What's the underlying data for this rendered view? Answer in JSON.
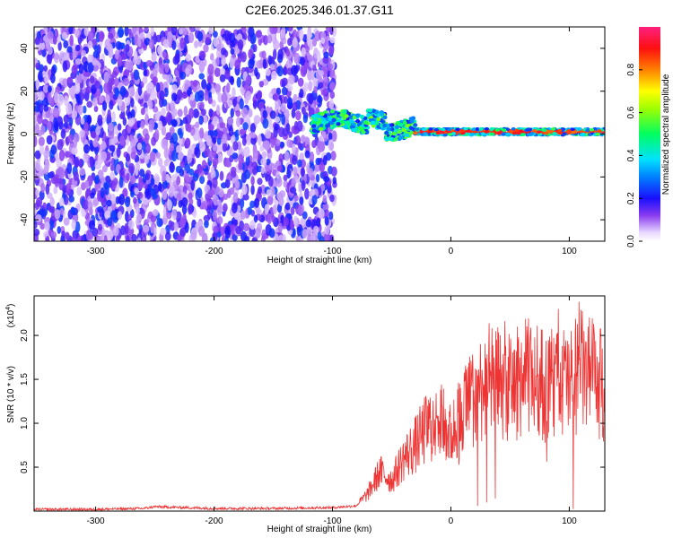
{
  "title": "C2E6.2025.346.01.37.G11",
  "chart_data": [
    {
      "type": "heatmap",
      "title": "C2E6.2025.346.01.37.G11",
      "xlabel": "Height of straight line (km)",
      "ylabel": "Frequency (Hz)",
      "xlim": [
        -352,
        130
      ],
      "ylim": [
        -50,
        50
      ],
      "x_ticks": [
        -300,
        -200,
        -100,
        0,
        100
      ],
      "y_ticks": [
        -40,
        -20,
        0,
        20,
        40
      ],
      "colorbar": {
        "label": "Normalized spectral amplitude",
        "range": [
          0.0,
          1.0
        ],
        "ticks": [
          0.0,
          0.2,
          0.4,
          0.6,
          0.8
        ]
      },
      "regions": [
        {
          "name": "broadband noise",
          "x_range": [
            -352,
            -98
          ],
          "freq_range": [
            -50,
            50
          ],
          "amplitude": [
            0.05,
            0.25
          ]
        },
        {
          "name": "signal onset",
          "x_range": [
            -118,
            -30
          ],
          "freq_center": 4,
          "freq_spread": 8,
          "amplitude": [
            0.2,
            0.6
          ]
        },
        {
          "name": "narrow carrier",
          "x_range": [
            -30,
            130
          ],
          "freq_center": 1,
          "freq_spread": 3,
          "amplitude": [
            0.4,
            1.0
          ]
        }
      ]
    },
    {
      "type": "line",
      "xlabel": "Height of straight line (km)",
      "ylabel": "SNR (10 * v/v)",
      "y_scale_label": "(x10",
      "y_scale_exp": "4",
      "y_scale_close": ")",
      "xlim": [
        -352,
        130
      ],
      "ylim": [
        0,
        2.45
      ],
      "x_ticks": [
        -300,
        -200,
        -100,
        0,
        100
      ],
      "y_ticks": [
        0.5,
        1.0,
        1.5,
        2.0
      ],
      "series": [
        {
          "name": "SNR",
          "color": "#ee3333",
          "x": [
            -352,
            -300,
            -260,
            -250,
            -200,
            -150,
            -100,
            -80,
            -70,
            -60,
            -50,
            -40,
            -30,
            -20,
            -10,
            0,
            10,
            20,
            30,
            40,
            50,
            60,
            70,
            80,
            90,
            100,
            110,
            120,
            130
          ],
          "y": [
            0.02,
            0.02,
            0.03,
            0.05,
            0.03,
            0.03,
            0.04,
            0.06,
            0.2,
            0.45,
            0.35,
            0.6,
            0.75,
            0.95,
            1.05,
            0.85,
            1.15,
            1.3,
            1.5,
            1.45,
            1.4,
            1.5,
            1.55,
            1.4,
            1.5,
            1.45,
            1.6,
            1.5,
            1.4
          ]
        }
      ]
    }
  ]
}
